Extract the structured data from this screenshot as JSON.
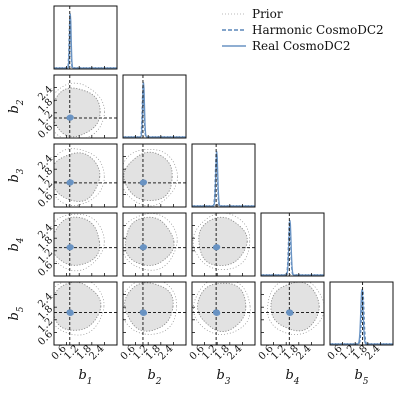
{
  "chart_data": {
    "type": "corner",
    "parameters": [
      "b_1",
      "b_2",
      "b_3",
      "b_4",
      "b_5"
    ],
    "axis_labels": [
      {
        "base": "b",
        "sub": "1"
      },
      {
        "base": "b",
        "sub": "2"
      },
      {
        "base": "b",
        "sub": "3"
      },
      {
        "base": "b",
        "sub": "4"
      },
      {
        "base": "b",
        "sub": "5"
      }
    ],
    "range": [
      0.0,
      3.0
    ],
    "ticks": [
      0.6,
      1.2,
      1.8,
      2.4
    ],
    "tick_labels": [
      "0.6",
      "1.2",
      "1.8",
      "2.4"
    ],
    "truth": [
      0.75,
      0.95,
      1.15,
      1.35,
      1.55
    ],
    "legend": {
      "position": "top-right",
      "entries": [
        {
          "label": "Prior",
          "style": "dotted",
          "color": "#b8b8b8"
        },
        {
          "label": "Harmonic CosmoDC2",
          "style": "dashed",
          "color": "#5a86b8"
        },
        {
          "label": "Real CosmoDC2",
          "style": "solid",
          "color": "#6a94c4"
        }
      ]
    },
    "series": [
      {
        "name": "Harmonic CosmoDC2",
        "mean": [
          0.76,
          0.96,
          1.16,
          1.36,
          1.56
        ],
        "sigma": [
          0.035,
          0.04,
          0.045,
          0.05,
          0.055
        ]
      },
      {
        "name": "Real CosmoDC2",
        "mean": [
          0.78,
          0.98,
          1.18,
          1.38,
          1.52
        ],
        "sigma": [
          0.035,
          0.04,
          0.045,
          0.05,
          0.055
        ]
      }
    ],
    "prior": {
      "inner_radius": 1.15,
      "outer_radius": 1.35
    },
    "colors": {
      "prior_fill": "#e2e2e2",
      "prior_line": "#8a8a8a",
      "harmonic": "#5a86b8",
      "real": "#6a94c4",
      "truth": "#222222"
    }
  }
}
